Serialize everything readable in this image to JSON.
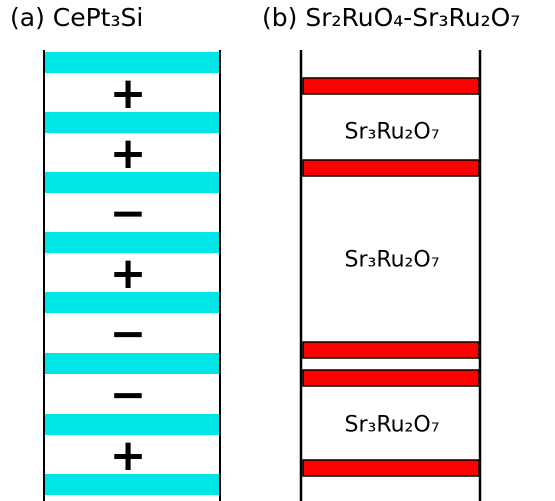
{
  "titles": {
    "a": "(a) CePt₃Si",
    "b": "(b) Sr₂RuO₄-Sr₃Ru₂O₇"
  },
  "panel_a": {
    "signs": [
      "+",
      "+",
      "−",
      "+",
      "−",
      "−",
      "+"
    ],
    "stripe_color": "#00e5e5"
  },
  "panel_b": {
    "labels": [
      "Sr₃Ru₂O₇",
      "Sr₃Ru₂O₇",
      "Sr₃Ru₂O₇"
    ],
    "bar_color": "#ff0000"
  }
}
